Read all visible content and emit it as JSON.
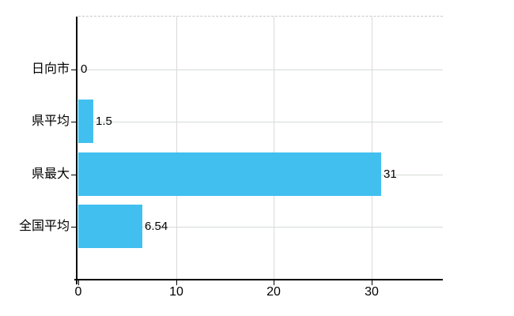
{
  "chart": {
    "background": "#ffffff",
    "bar_color": "#41C0F0",
    "axis_color": "#000000",
    "h_gridline_color": "#d5dcd5",
    "v_gridline_color": "#dcd8dc",
    "top_border_color": "#c8c8c8",
    "text_color": "#000000"
  },
  "chart_data": {
    "type": "bar",
    "orientation": "horizontal",
    "title": "",
    "xlabel": "",
    "ylabel": "",
    "categories": [
      "日向市",
      "県平均",
      "県最大",
      "全国平均"
    ],
    "values": [
      0,
      1.5,
      31,
      6.54
    ],
    "value_labels": [
      "0",
      "1.5",
      "31",
      "6.54"
    ],
    "xticks": [
      0,
      10,
      20,
      30
    ],
    "x_tick_labels": [
      "0",
      "10",
      "20",
      "30"
    ],
    "xlim": [
      0,
      37.3
    ],
    "grid": true,
    "legend": false
  }
}
